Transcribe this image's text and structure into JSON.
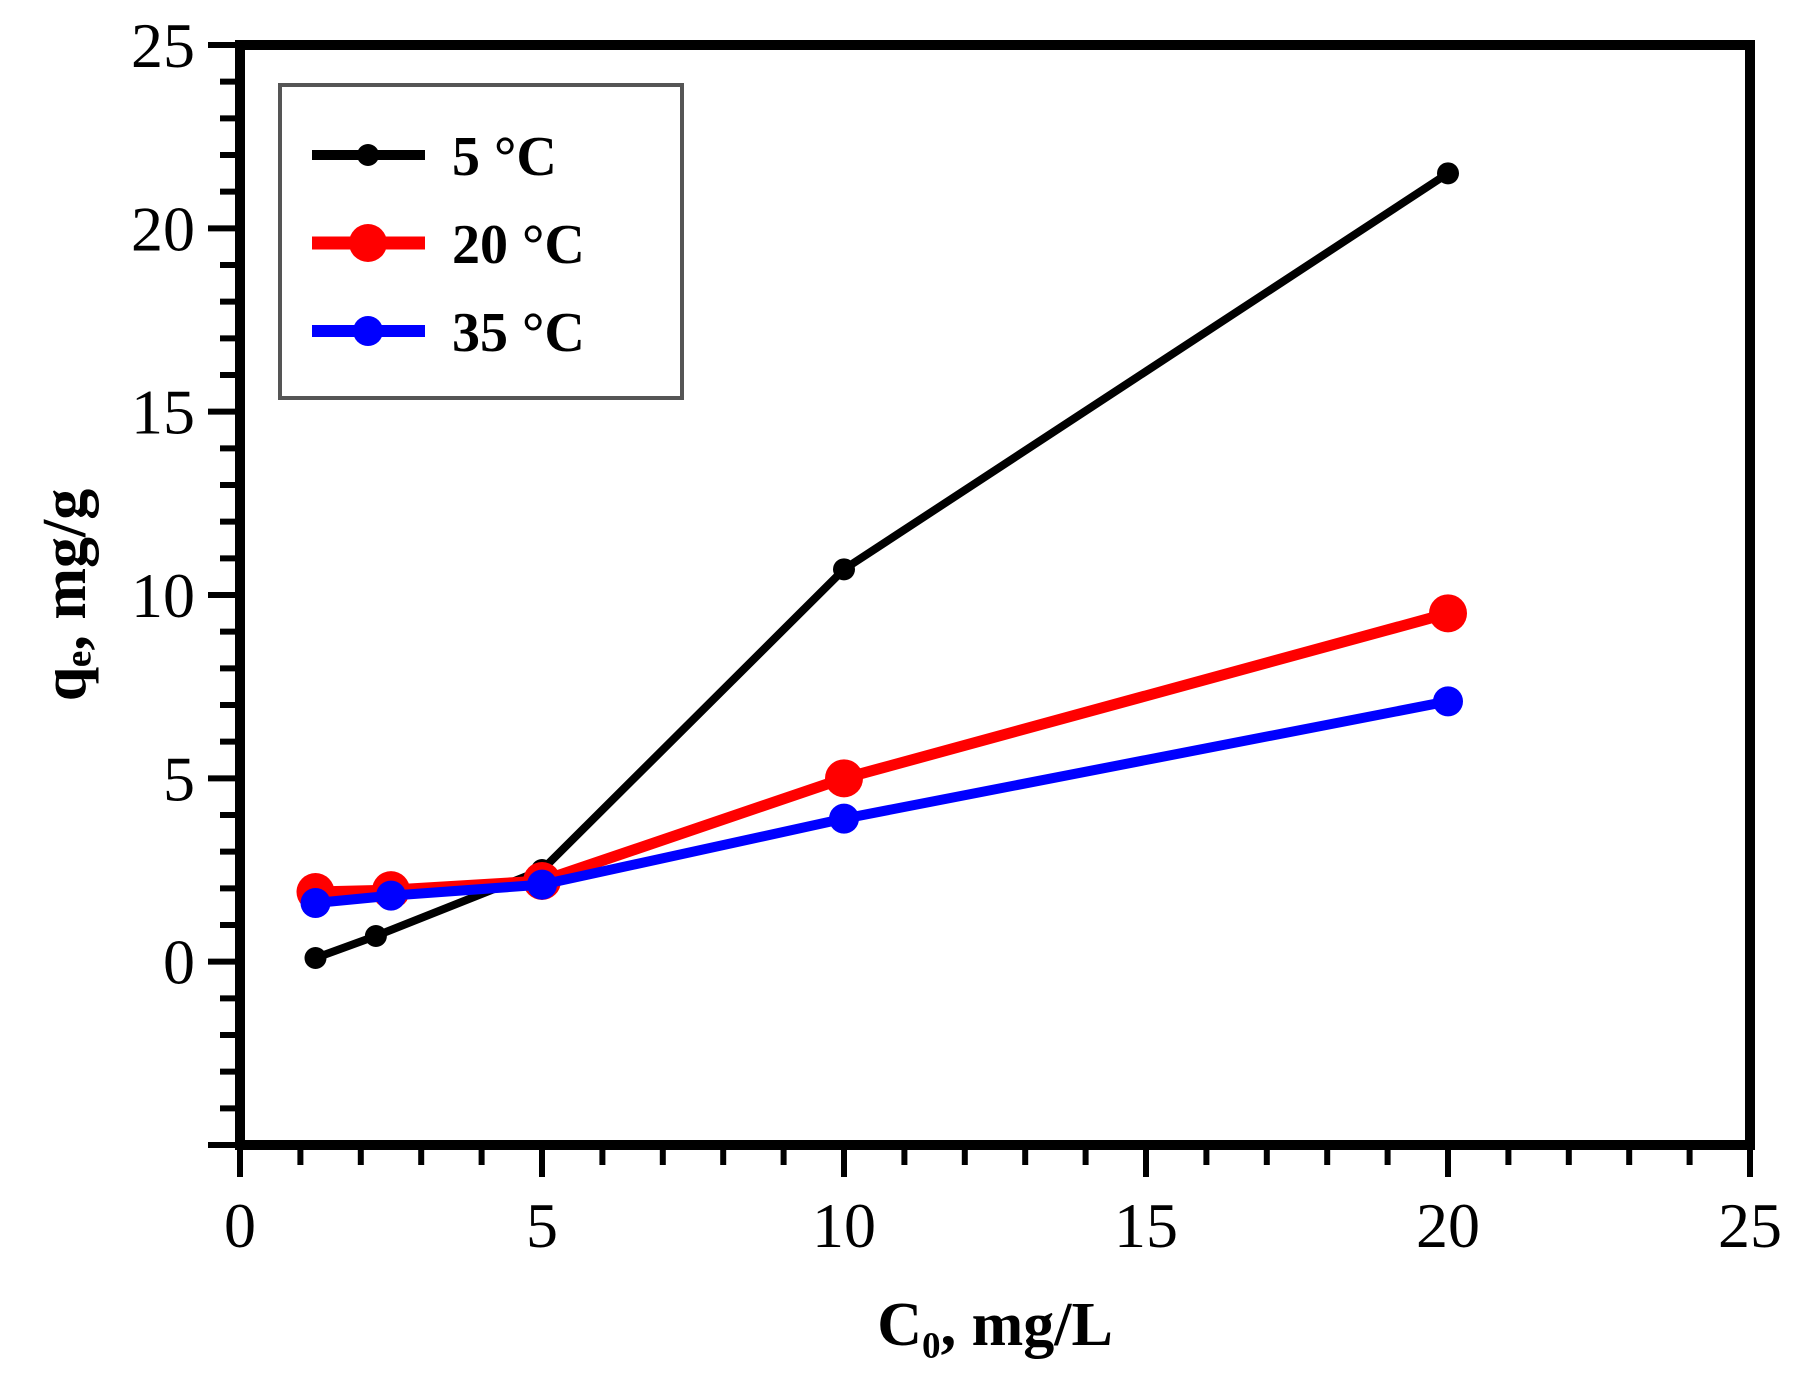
{
  "chart_data": {
    "type": "line",
    "x_label": "C₀, mg/L",
    "y_label": "qₑ, mg/g",
    "xlim": [
      0,
      25
    ],
    "ylim": [
      -5,
      25
    ],
    "x_ticks": [
      0,
      5,
      10,
      15,
      20,
      25
    ],
    "x_tick_labels": [
      "0",
      "5",
      "10",
      "15",
      "20",
      "25"
    ],
    "y_ticks": [
      0,
      5,
      10,
      15,
      20,
      25
    ],
    "y_tick_labels": [
      "0",
      "5",
      "10",
      "15",
      "20",
      "25"
    ],
    "grid": false,
    "legend_position": "top-left",
    "series": [
      {
        "name": "5 °C",
        "color": "#000000",
        "marker": "small",
        "x": [
          1.25,
          2.25,
          5,
          10,
          20
        ],
        "y": [
          0.1,
          0.7,
          2.5,
          10.7,
          21.5
        ]
      },
      {
        "name": "20 °C",
        "color": "#ff0000",
        "marker": "large",
        "x": [
          1.25,
          2.5,
          5,
          10,
          20
        ],
        "y": [
          1.9,
          1.95,
          2.2,
          5.0,
          9.5
        ]
      },
      {
        "name": "35 °C",
        "color": "#0000ff",
        "marker": "medium",
        "x": [
          1.25,
          2.5,
          5,
          10,
          20
        ],
        "y": [
          1.6,
          1.8,
          2.1,
          3.9,
          7.1
        ]
      }
    ]
  }
}
